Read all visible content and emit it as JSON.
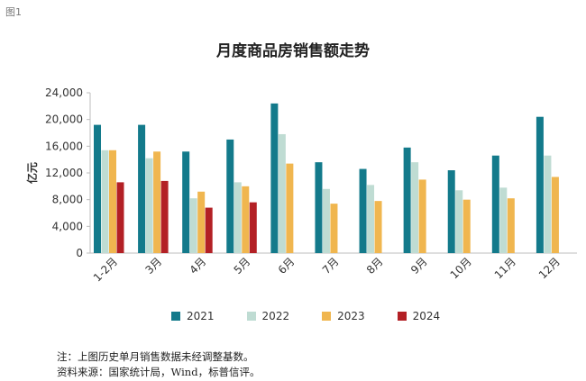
{
  "figure_label": "图1",
  "legend": [
    {
      "name": "2021",
      "color": "#137a8b"
    },
    {
      "name": "2022",
      "color": "#bfdcd3"
    },
    {
      "name": "2023",
      "color": "#f0b64f"
    },
    {
      "name": "2024",
      "color": "#b32025"
    }
  ],
  "notes": {
    "line1": "注：上图历史单月销售数据未经调整基数。",
    "line2": "资料来源：国家统计局，Wind，标普信评。"
  },
  "chart_data": {
    "type": "bar",
    "title": "月度商品房销售额走势",
    "xlabel": "",
    "ylabel": "亿元",
    "ylim": [
      0,
      24000
    ],
    "yticks": [
      0,
      4000,
      8000,
      12000,
      16000,
      20000,
      24000
    ],
    "ytick_labels": [
      "0",
      "4,000",
      "8,000",
      "12,000",
      "16,000",
      "20,000",
      "24,000"
    ],
    "grid": false,
    "legend_position": "bottom",
    "categories": [
      "1-2月",
      "3月",
      "4月",
      "5月",
      "6月",
      "7月",
      "8月",
      "9月",
      "10月",
      "11月",
      "12月"
    ],
    "series": [
      {
        "name": "2021",
        "color": "#137a8b",
        "values": [
          19200,
          19200,
          15200,
          17000,
          22400,
          13600,
          12600,
          15800,
          12400,
          14600,
          20400
        ]
      },
      {
        "name": "2022",
        "color": "#bfdcd3",
        "values": [
          15400,
          14200,
          8200,
          10600,
          17800,
          9600,
          10200,
          13600,
          9400,
          9800,
          14600
        ]
      },
      {
        "name": "2023",
        "color": "#f0b64f",
        "values": [
          15400,
          15200,
          9200,
          10000,
          13400,
          7400,
          7800,
          11000,
          8000,
          8200,
          11400
        ]
      },
      {
        "name": "2024",
        "color": "#b32025",
        "values": [
          10600,
          10800,
          6800,
          7600,
          null,
          null,
          null,
          null,
          null,
          null,
          null
        ]
      }
    ]
  }
}
